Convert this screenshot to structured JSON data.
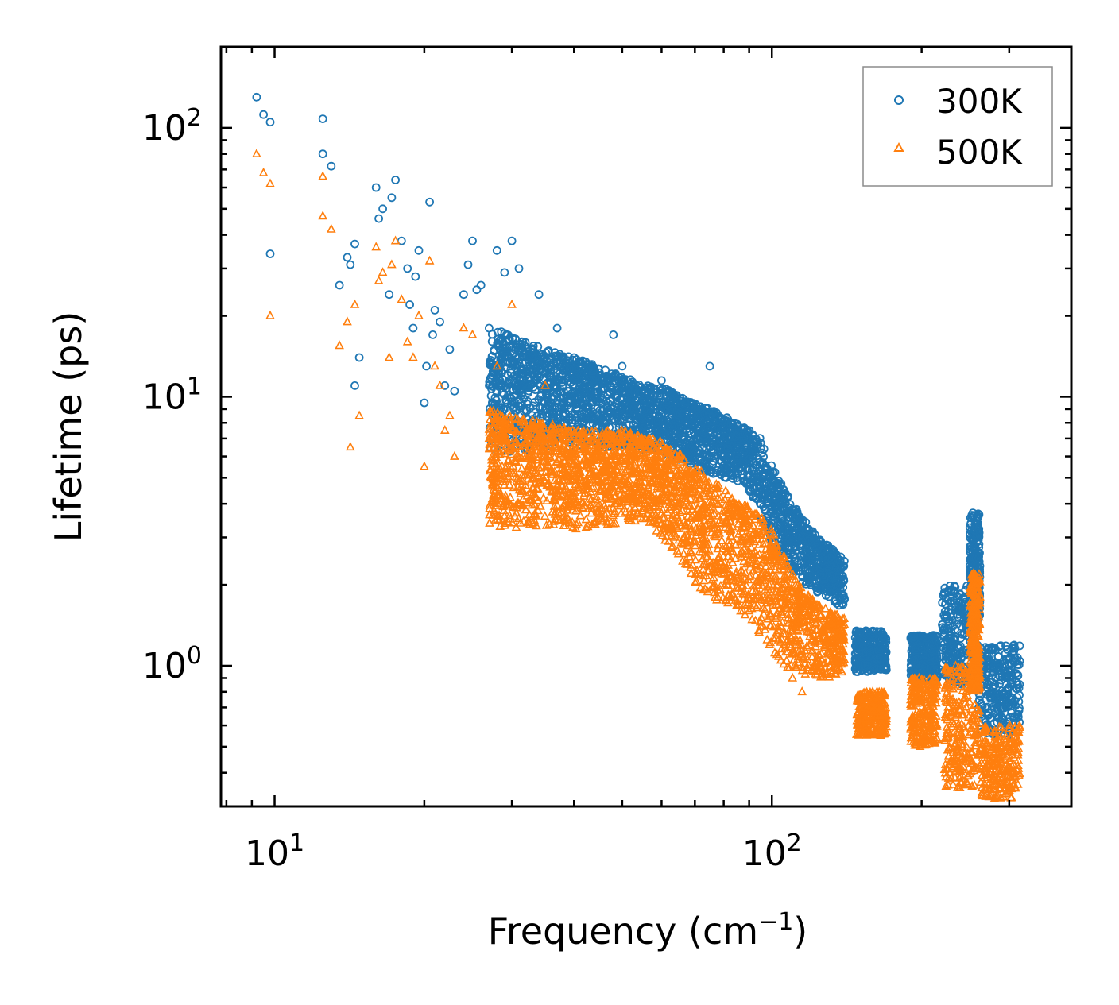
{
  "chart_data": {
    "type": "scatter",
    "title": "",
    "xlabel": "Frequency (cm",
    "xlabel_superscript": "−1",
    "xlabel_suffix": ")",
    "ylabel": "Lifetime (ps)",
    "xscale": "log",
    "yscale": "log",
    "xlim": [
      7.8,
      400
    ],
    "ylim": [
      0.3,
      200
    ],
    "x_ticks": [
      {
        "base": "10",
        "exp": "1",
        "value": 10
      },
      {
        "base": "10",
        "exp": "2",
        "value": 100
      }
    ],
    "y_ticks": [
      {
        "base": "10",
        "exp": "0",
        "value": 1
      },
      {
        "base": "10",
        "exp": "1",
        "value": 10
      },
      {
        "base": "10",
        "exp": "2",
        "value": 100
      }
    ],
    "legend_position": "top-right",
    "series": [
      {
        "name": "300K",
        "marker": "circle",
        "color": "#1f77b4",
        "points": [
          [
            9.2,
            130
          ],
          [
            9.5,
            112
          ],
          [
            9.8,
            105
          ],
          [
            9.8,
            34
          ],
          [
            12.5,
            108
          ],
          [
            12.5,
            80
          ],
          [
            13.0,
            72
          ],
          [
            13.5,
            26
          ],
          [
            14.0,
            33
          ],
          [
            14.2,
            31
          ],
          [
            14.5,
            37
          ],
          [
            14.5,
            11
          ],
          [
            14.8,
            14
          ],
          [
            16.0,
            60
          ],
          [
            16.2,
            46
          ],
          [
            16.5,
            50
          ],
          [
            17.0,
            24
          ],
          [
            17.2,
            55
          ],
          [
            17.5,
            64
          ],
          [
            18.0,
            38
          ],
          [
            18.5,
            30
          ],
          [
            18.7,
            22
          ],
          [
            19.0,
            18
          ],
          [
            19.2,
            28
          ],
          [
            19.5,
            35
          ],
          [
            20.0,
            9.5
          ],
          [
            20.2,
            13
          ],
          [
            20.5,
            53
          ],
          [
            20.8,
            17
          ],
          [
            21.0,
            21
          ],
          [
            21.5,
            19
          ],
          [
            22.0,
            11
          ],
          [
            22.5,
            15
          ],
          [
            23.0,
            10.5
          ],
          [
            24.0,
            24
          ],
          [
            24.5,
            31
          ],
          [
            25.0,
            38
          ],
          [
            25.5,
            25
          ],
          [
            26.0,
            26
          ],
          [
            27.0,
            18
          ],
          [
            28.0,
            35
          ],
          [
            29.0,
            29
          ],
          [
            30.0,
            38
          ],
          [
            31.0,
            30
          ],
          [
            34.0,
            24
          ],
          [
            37.0,
            18
          ],
          [
            40.0,
            14
          ],
          [
            48.0,
            17
          ],
          [
            50.0,
            13
          ],
          [
            60.0,
            11.5
          ],
          [
            75.0,
            13
          ]
        ],
        "envelope": [
          [
            27,
            6.2,
            18
          ],
          [
            30,
            6.2,
            17
          ],
          [
            35,
            6.5,
            15
          ],
          [
            40,
            6.5,
            14
          ],
          [
            45,
            6.5,
            13
          ],
          [
            50,
            6.3,
            12
          ],
          [
            55,
            6.2,
            11
          ],
          [
            60,
            6,
            11
          ],
          [
            65,
            5.8,
            10
          ],
          [
            70,
            5.5,
            9.5
          ],
          [
            75,
            5.2,
            9
          ],
          [
            80,
            5,
            8.5
          ],
          [
            85,
            4.8,
            8
          ],
          [
            90,
            4.5,
            7.5
          ],
          [
            95,
            3.5,
            7
          ],
          [
            100,
            2.8,
            5.5
          ],
          [
            110,
            2.2,
            4
          ],
          [
            120,
            1.9,
            3.2
          ],
          [
            130,
            1.8,
            2.8
          ],
          [
            140,
            1.6,
            2.5
          ]
        ],
        "clusters": [
          {
            "xmin": 147,
            "xmax": 170,
            "ymin": 0.95,
            "ymax": 1.35
          },
          {
            "xmin": 190,
            "xmax": 215,
            "ymin": 0.88,
            "ymax": 1.3
          },
          {
            "xmin": 220,
            "xmax": 260,
            "ymin": 0.85,
            "ymax": 2.0
          },
          {
            "xmin": 250,
            "xmax": 262,
            "ymin": 1.5,
            "ymax": 3.7
          },
          {
            "xmin": 260,
            "xmax": 315,
            "ymin": 0.55,
            "ymax": 1.2
          }
        ]
      },
      {
        "name": "500K",
        "marker": "triangle",
        "color": "#ff7f0e",
        "points": [
          [
            9.2,
            80
          ],
          [
            9.5,
            68
          ],
          [
            9.8,
            62
          ],
          [
            9.8,
            20
          ],
          [
            12.5,
            66
          ],
          [
            12.5,
            47
          ],
          [
            13.0,
            42
          ],
          [
            13.5,
            15.5
          ],
          [
            14.0,
            19
          ],
          [
            14.2,
            6.5
          ],
          [
            14.5,
            22
          ],
          [
            14.8,
            8.5
          ],
          [
            16.0,
            36
          ],
          [
            16.2,
            27
          ],
          [
            16.5,
            29
          ],
          [
            17.0,
            14
          ],
          [
            17.2,
            31
          ],
          [
            17.5,
            38
          ],
          [
            18.0,
            23
          ],
          [
            18.5,
            16
          ],
          [
            19.0,
            14
          ],
          [
            19.5,
            20
          ],
          [
            20.0,
            5.5
          ],
          [
            20.5,
            32
          ],
          [
            21.0,
            13
          ],
          [
            21.5,
            11
          ],
          [
            22.0,
            7.5
          ],
          [
            22.5,
            8.5
          ],
          [
            23.0,
            6
          ],
          [
            24.0,
            18
          ],
          [
            25.0,
            17
          ],
          [
            28.0,
            13
          ],
          [
            30.0,
            22
          ],
          [
            35.0,
            11
          ],
          [
            90.0,
            1.6
          ],
          [
            95.0,
            1.4
          ],
          [
            110.0,
            0.9
          ],
          [
            115.0,
            0.8
          ]
        ],
        "envelope": [
          [
            27,
            3.2,
            9
          ],
          [
            30,
            3.2,
            8.5
          ],
          [
            35,
            3.3,
            8
          ],
          [
            40,
            3.2,
            7.5
          ],
          [
            45,
            3.3,
            7.5
          ],
          [
            50,
            3.4,
            7.5
          ],
          [
            55,
            3.3,
            7.2
          ],
          [
            60,
            3.0,
            6.8
          ],
          [
            65,
            2.4,
            6.2
          ],
          [
            70,
            2.0,
            5.5
          ],
          [
            75,
            1.8,
            5
          ],
          [
            80,
            1.7,
            4.6
          ],
          [
            85,
            1.6,
            4.2
          ],
          [
            90,
            1.5,
            3.9
          ],
          [
            95,
            1.3,
            3.6
          ],
          [
            100,
            1.1,
            3.2
          ],
          [
            110,
            0.95,
            2.2
          ],
          [
            120,
            0.9,
            1.8
          ],
          [
            130,
            0.9,
            1.6
          ],
          [
            140,
            0.95,
            1.5
          ]
        ],
        "clusters": [
          {
            "xmin": 148,
            "xmax": 170,
            "ymin": 0.55,
            "ymax": 0.8
          },
          {
            "xmin": 190,
            "xmax": 215,
            "ymin": 0.5,
            "ymax": 0.9
          },
          {
            "xmin": 222,
            "xmax": 262,
            "ymin": 0.35,
            "ymax": 1.0
          },
          {
            "xmin": 250,
            "xmax": 262,
            "ymin": 0.8,
            "ymax": 2.2
          },
          {
            "xmin": 262,
            "xmax": 315,
            "ymin": 0.32,
            "ymax": 0.6
          }
        ]
      }
    ]
  }
}
